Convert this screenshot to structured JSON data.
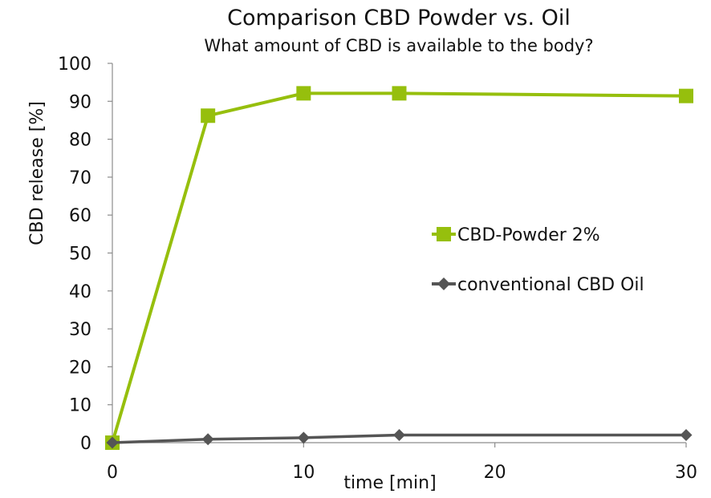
{
  "chart_data": {
    "type": "line",
    "title": "Comparison CBD Powder vs. Oil",
    "subtitle": "What amount of CBD is available to the body?",
    "xlabel": "time [min]",
    "ylabel": "CBD release [%]",
    "xlim": [
      0,
      30
    ],
    "ylim": [
      0,
      100
    ],
    "x_ticks": [
      0,
      10,
      20,
      30
    ],
    "y_ticks": [
      0,
      10,
      20,
      30,
      40,
      50,
      60,
      70,
      80,
      90,
      100
    ],
    "grid": false,
    "legend_position": "right-center",
    "series": [
      {
        "name": "CBD-Powder 2%",
        "color": "#96bf0d",
        "marker": "square",
        "points": [
          {
            "x": 0,
            "y": 0
          },
          {
            "x": 5,
            "y": 86.2
          },
          {
            "x": 10,
            "y": 92.1
          },
          {
            "x": 15,
            "y": 92.1
          },
          {
            "x": 30,
            "y": 91.4
          }
        ]
      },
      {
        "name": "conventional CBD Oil",
        "color": "#555555",
        "marker": "diamond",
        "points": [
          {
            "x": 0,
            "y": 0
          },
          {
            "x": 5,
            "y": 0.9
          },
          {
            "x": 10,
            "y": 1.3
          },
          {
            "x": 15,
            "y": 2.0
          },
          {
            "x": 30,
            "y": 2.0
          }
        ]
      }
    ]
  }
}
